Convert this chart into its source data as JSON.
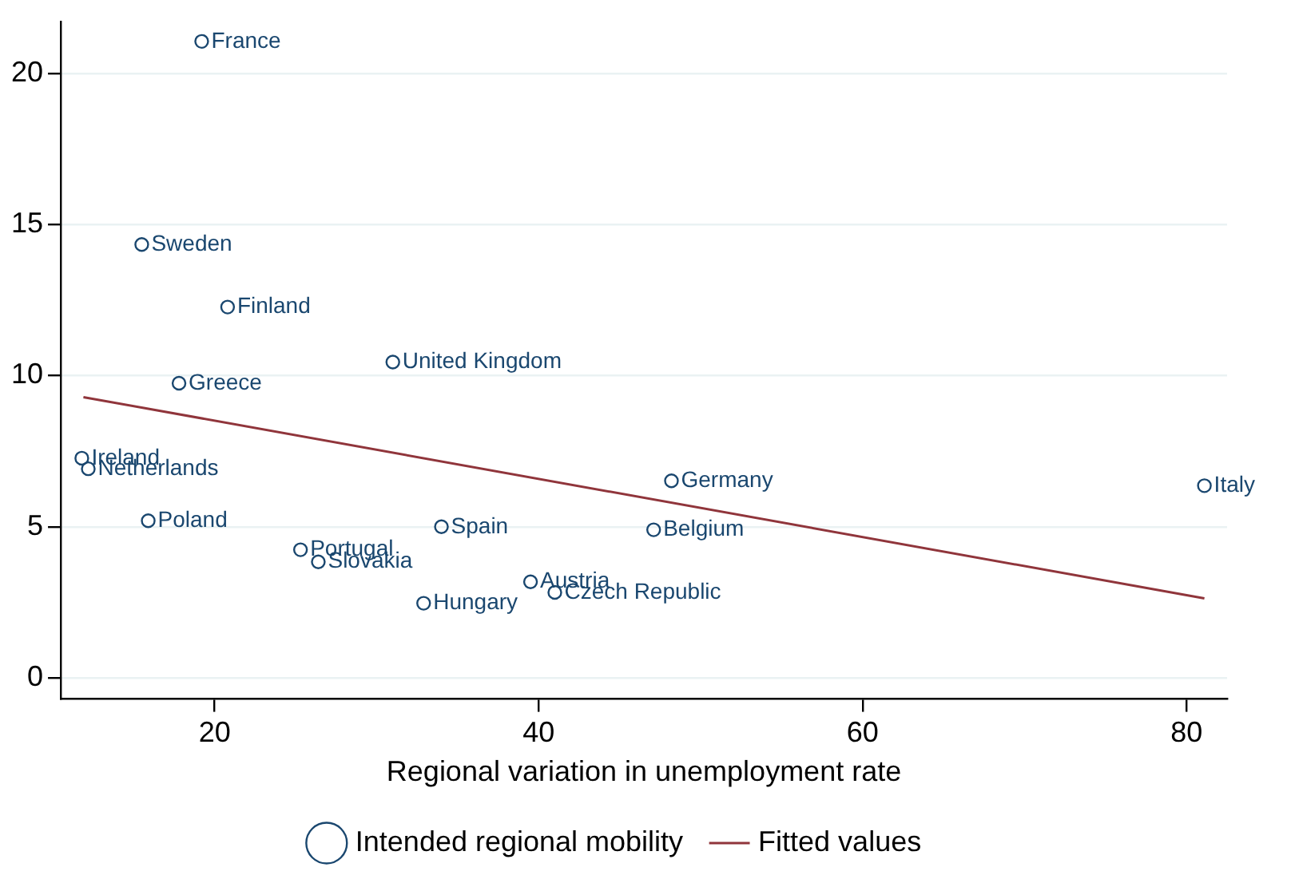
{
  "chart_data": {
    "type": "scatter",
    "xlabel": "Regional variation in unemployment rate",
    "xlim": [
      10.5,
      82.5
    ],
    "xticks": [
      20,
      40,
      60,
      80
    ],
    "ylim": [
      -0.7,
      21.7
    ],
    "yticks": [
      0,
      5,
      10,
      15,
      20
    ],
    "grid": "y",
    "legend": "bottom",
    "marker": "circle",
    "series": [
      {
        "name": "Intended regional mobility",
        "color": "#1a476f",
        "x": [
          19.2,
          15.5,
          20.8,
          31.0,
          17.8,
          11.8,
          12.2,
          15.9,
          25.3,
          26.4,
          34.0,
          32.9,
          39.5,
          41.0,
          47.1,
          48.2,
          81.1
        ],
        "values": [
          21.06,
          14.34,
          12.27,
          10.45,
          9.75,
          7.27,
          6.92,
          5.2,
          4.24,
          3.84,
          5.0,
          2.47,
          3.18,
          2.83,
          4.9,
          6.52,
          6.36
        ]
      },
      {
        "name": "Fitted values",
        "type": "line",
        "marker": "none",
        "color": "#90353b",
        "x": [
          11.9,
          81.1
        ],
        "values": [
          9.29,
          2.63
        ]
      }
    ],
    "annotations": [
      {
        "text": "France",
        "x": 19.2,
        "y": 21.06
      },
      {
        "text": "Sweden",
        "x": 15.5,
        "y": 14.34
      },
      {
        "text": "Finland",
        "x": 20.8,
        "y": 12.27
      },
      {
        "text": "United Kingdom",
        "x": 31.0,
        "y": 10.45
      },
      {
        "text": "Greece",
        "x": 17.8,
        "y": 9.75
      },
      {
        "text": "Ireland",
        "x": 11.8,
        "y": 7.27
      },
      {
        "text": "Netherlands",
        "x": 12.2,
        "y": 6.92
      },
      {
        "text": "Poland",
        "x": 15.9,
        "y": 5.2
      },
      {
        "text": "Portugal",
        "x": 25.3,
        "y": 4.24
      },
      {
        "text": "Slovakia",
        "x": 26.4,
        "y": 3.84
      },
      {
        "text": "Spain",
        "x": 34.0,
        "y": 5.0
      },
      {
        "text": "Hungary",
        "x": 32.9,
        "y": 2.47
      },
      {
        "text": "Austria",
        "x": 39.5,
        "y": 3.18
      },
      {
        "text": "Czech Republic",
        "x": 41.0,
        "y": 2.83
      },
      {
        "text": "Belgium",
        "x": 47.1,
        "y": 4.9
      },
      {
        "text": "Germany",
        "x": 48.2,
        "y": 6.52
      },
      {
        "text": "Italy",
        "x": 81.1,
        "y": 6.36
      }
    ]
  }
}
